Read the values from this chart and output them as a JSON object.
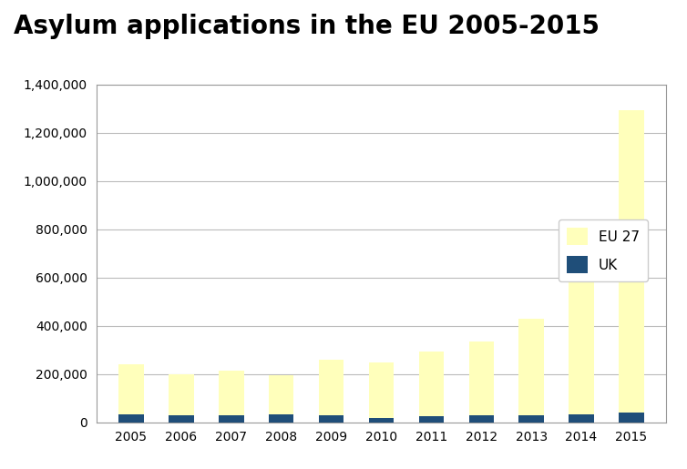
{
  "title": "Asylum applications in the EU 2005-2015",
  "years": [
    2005,
    2006,
    2007,
    2008,
    2009,
    2010,
    2011,
    2012,
    2013,
    2014,
    2015
  ],
  "eu27_values": [
    210000,
    171000,
    185000,
    165000,
    228000,
    228000,
    267000,
    307000,
    397000,
    560000,
    1255000
  ],
  "uk_values": [
    30800,
    28300,
    27900,
    31000,
    29800,
    17900,
    26400,
    28000,
    30000,
    32000,
    38500
  ],
  "eu27_color": "#FFFFBB",
  "uk_color": "#1F4E79",
  "ylim": [
    0,
    1400000
  ],
  "yticks": [
    0,
    200000,
    400000,
    600000,
    800000,
    1000000,
    1200000,
    1400000
  ],
  "legend_labels": [
    "EU 27",
    "UK"
  ],
  "background_color": "#ffffff",
  "grid_color": "#bbbbbb",
  "title_fontsize": 20,
  "tick_fontsize": 10
}
